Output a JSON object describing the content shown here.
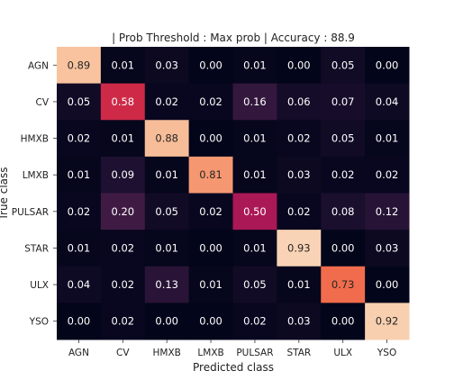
{
  "chart_data": {
    "type": "heatmap",
    "title": "| Prob Threshold : Max prob | Accuracy : 88.9",
    "xlabel": "Predicted class",
    "ylabel": "True class",
    "x_categories": [
      "AGN",
      "CV",
      "HMXB",
      "LMXB",
      "PULSAR",
      "STAR",
      "ULX",
      "YSO"
    ],
    "y_categories": [
      "AGN",
      "CV",
      "HMXB",
      "LMXB",
      "PULSAR",
      "STAR",
      "ULX",
      "YSO"
    ],
    "values": [
      [
        0.89,
        0.01,
        0.03,
        0.0,
        0.01,
        0.0,
        0.05,
        0.0
      ],
      [
        0.05,
        0.58,
        0.02,
        0.02,
        0.16,
        0.06,
        0.07,
        0.04
      ],
      [
        0.02,
        0.01,
        0.88,
        0.0,
        0.01,
        0.02,
        0.05,
        0.01
      ],
      [
        0.01,
        0.09,
        0.01,
        0.81,
        0.01,
        0.03,
        0.02,
        0.02
      ],
      [
        0.02,
        0.2,
        0.05,
        0.02,
        0.5,
        0.02,
        0.08,
        0.12
      ],
      [
        0.01,
        0.02,
        0.01,
        0.0,
        0.01,
        0.93,
        0.0,
        0.03
      ],
      [
        0.04,
        0.02,
        0.13,
        0.01,
        0.05,
        0.01,
        0.73,
        0.0
      ],
      [
        0.0,
        0.02,
        0.0,
        0.0,
        0.02,
        0.03,
        0.0,
        0.92
      ]
    ],
    "value_range": [
      0,
      1
    ],
    "colormap": "rocket",
    "grid": false,
    "legend": "none"
  }
}
